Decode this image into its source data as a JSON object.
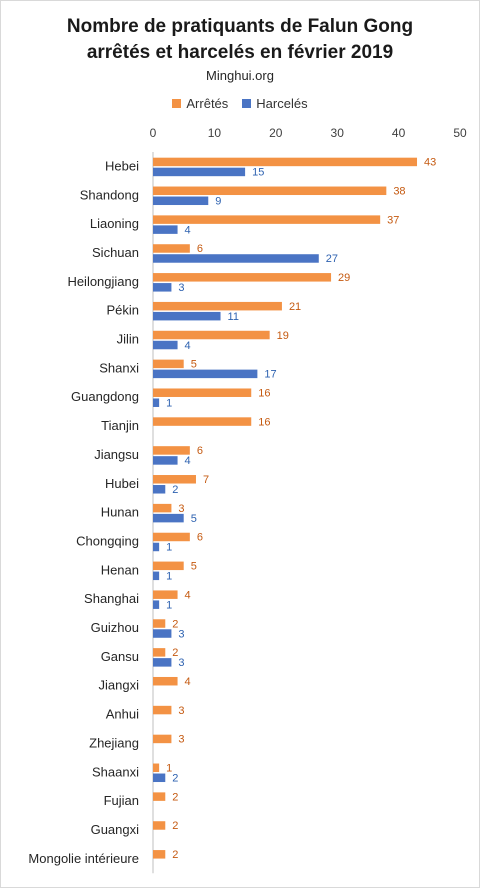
{
  "chart_data": {
    "type": "bar",
    "orientation": "horizontal",
    "title_line1": "Nombre de pratiquants  de Falun Gong",
    "title_line2": "arrêtés et harcelés en février 2019",
    "subtitle": "Minghui.org",
    "xlim": [
      0,
      50
    ],
    "xticks": [
      "0",
      "10",
      "20",
      "30",
      "40",
      "50"
    ],
    "legend_position": "top",
    "grid": false,
    "categories": [
      "Hebei",
      "Shandong",
      "Liaoning",
      "Sichuan",
      "Heilongjiang",
      "Pékin",
      "Jilin",
      "Shanxi",
      "Guangdong",
      "Tianjin",
      "Jiangsu",
      "Hubei",
      "Hunan",
      "Chongqing",
      "Henan",
      "Shanghai",
      "Guizhou",
      "Gansu",
      "Jiangxi",
      "Anhui",
      "Zhejiang",
      "Shaanxi",
      "Fujian",
      "Guangxi",
      "Mongolie intérieure"
    ],
    "series": [
      {
        "name": "Arrêtés",
        "color": "#f39244",
        "label_color": "#c55a11",
        "values": [
          43,
          38,
          37,
          6,
          29,
          21,
          19,
          5,
          16,
          16,
          6,
          7,
          3,
          6,
          5,
          4,
          2,
          2,
          4,
          3,
          3,
          1,
          2,
          2,
          2
        ]
      },
      {
        "name": "Harcelés",
        "color": "#4a74c4",
        "label_color": "#2e62b0",
        "values": [
          15,
          9,
          4,
          27,
          3,
          11,
          4,
          17,
          1,
          null,
          4,
          2,
          5,
          1,
          1,
          1,
          3,
          3,
          null,
          null,
          null,
          2,
          null,
          null,
          null
        ]
      }
    ]
  }
}
